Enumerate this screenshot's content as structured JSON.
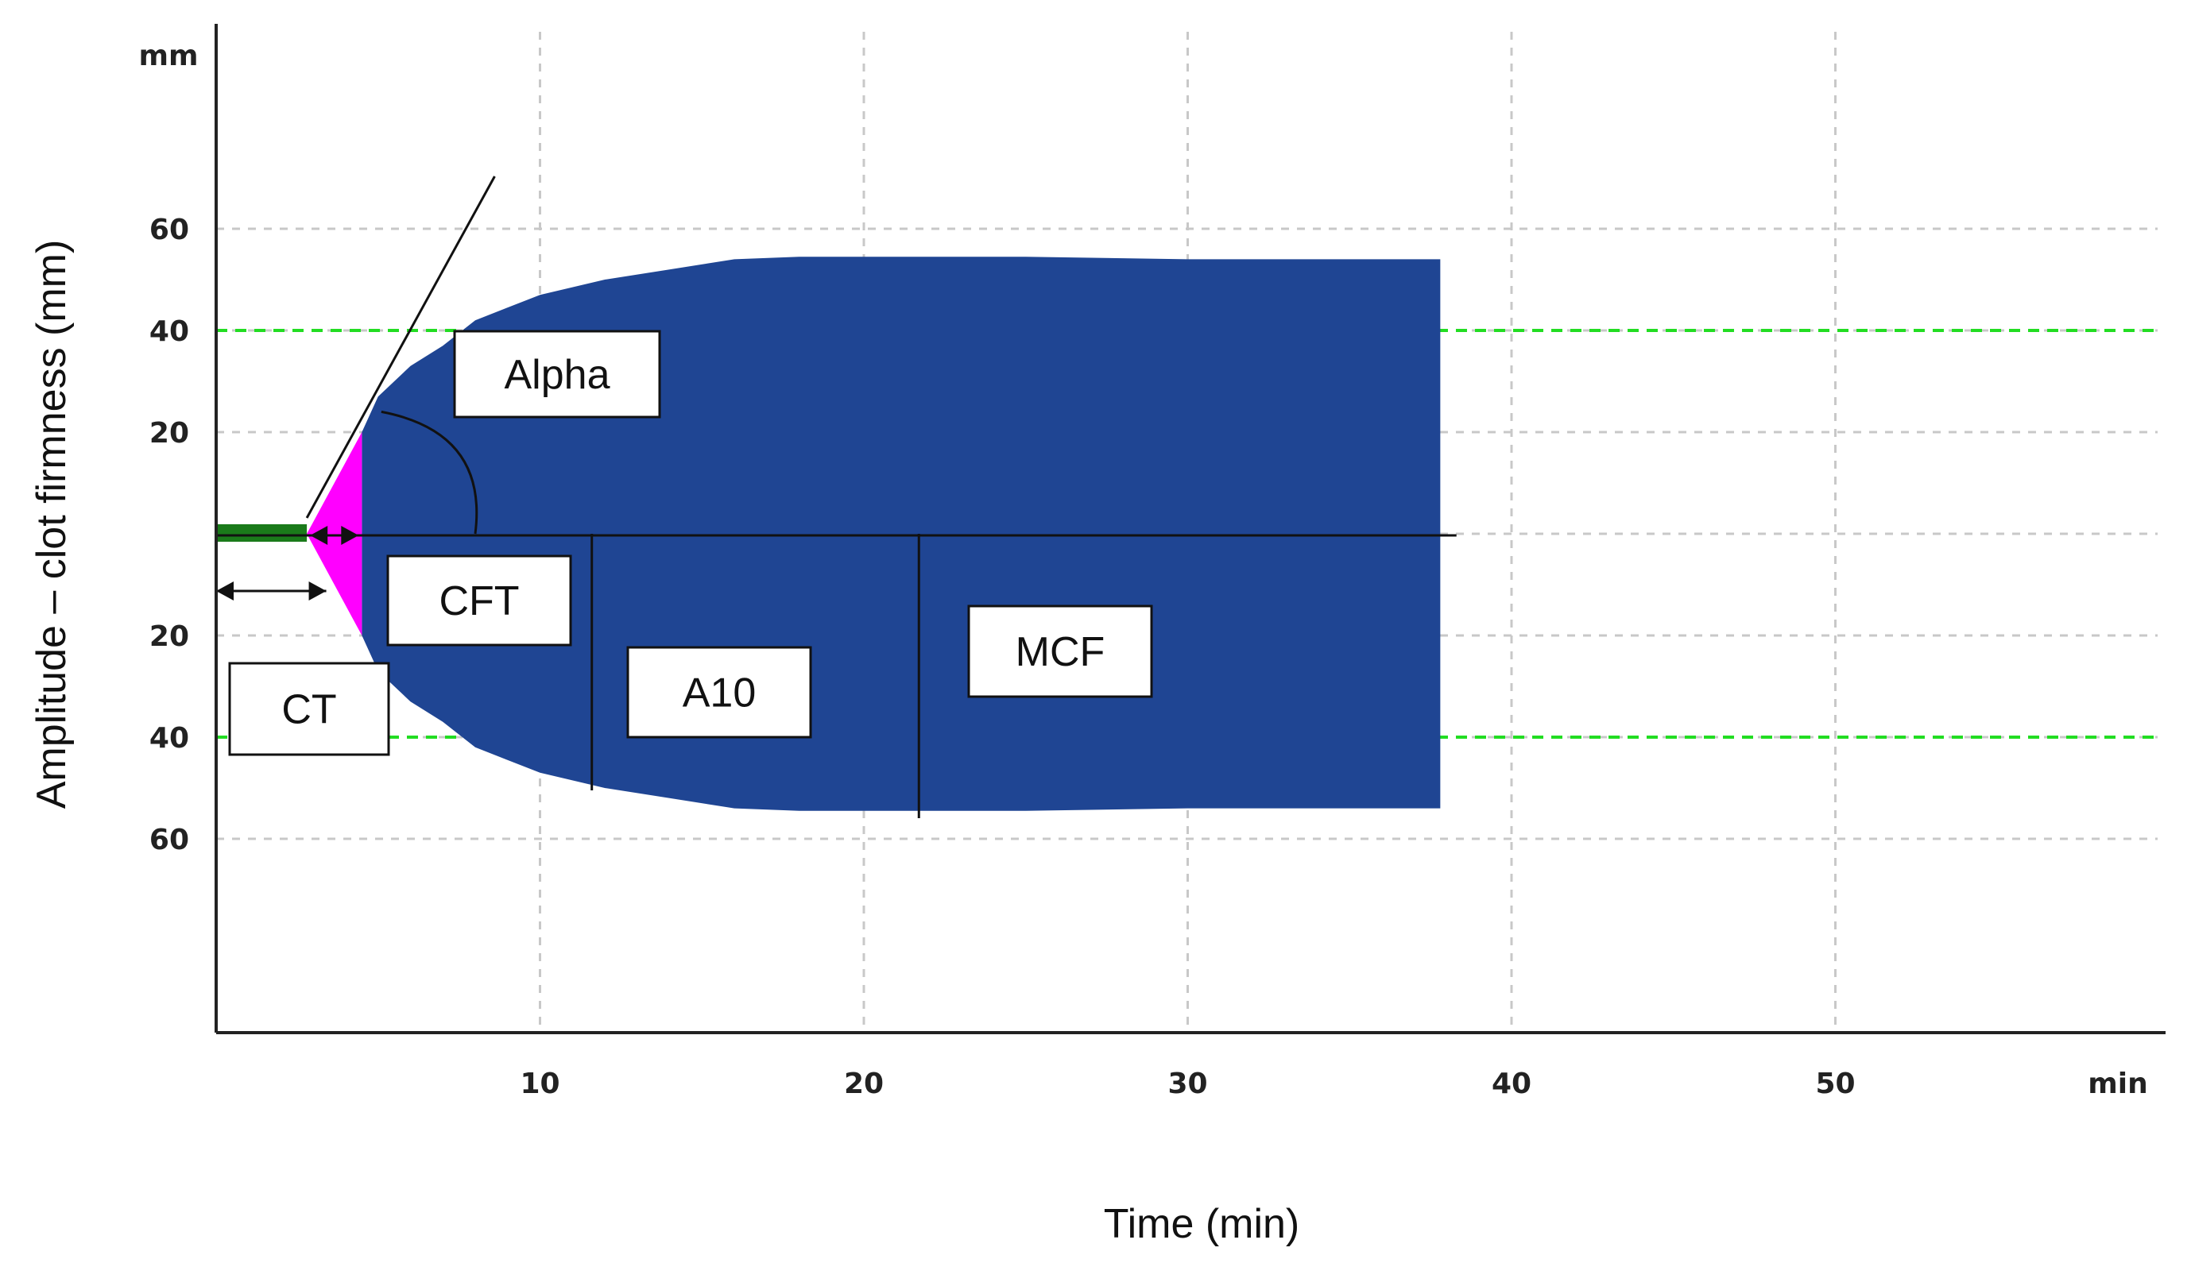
{
  "chart_data": {
    "type": "area",
    "title": "",
    "xlabel": "Time (min)",
    "ylabel": "Amplitude – clot firmness (mm)",
    "x_unit": "min",
    "y_unit": "mm",
    "x_ticks": [
      10,
      20,
      30,
      40,
      50
    ],
    "y_ticks_upper": [
      60,
      40,
      20
    ],
    "y_ticks_lower": [
      20,
      40,
      60
    ],
    "xlim": [
      0,
      60
    ],
    "ylim": [
      -90,
      90
    ],
    "grid": true,
    "series": [
      {
        "name": "",
        "color": "#1f4593",
        "x": [
          4.5,
          5,
          6,
          7,
          8,
          10,
          12,
          14,
          16,
          18,
          20,
          25,
          30,
          35,
          37.8
        ],
        "values": [
          20,
          27,
          33,
          37,
          42,
          47,
          50,
          52,
          54,
          54.5,
          54.5,
          54.5,
          54,
          54,
          54
        ]
      }
    ],
    "baseline": {
      "color": "#1a7a1a",
      "x": [
        0,
        2.8
      ]
    },
    "clot_initiation": {
      "color": "#ff00ff",
      "x": [
        2.8,
        4.5
      ],
      "values": [
        0,
        20
      ]
    },
    "reference_lines": {
      "color": "#22dd22",
      "values": [
        40,
        -40
      ]
    },
    "annotations": {
      "ct": "CT",
      "cft": "CFT",
      "alpha": "Alpha",
      "a10": "A10",
      "mcf": "MCF"
    },
    "a10_time": 11.6,
    "mcf_time": 21.7,
    "cft_time": 4.5,
    "ct_time": 2.8
  }
}
